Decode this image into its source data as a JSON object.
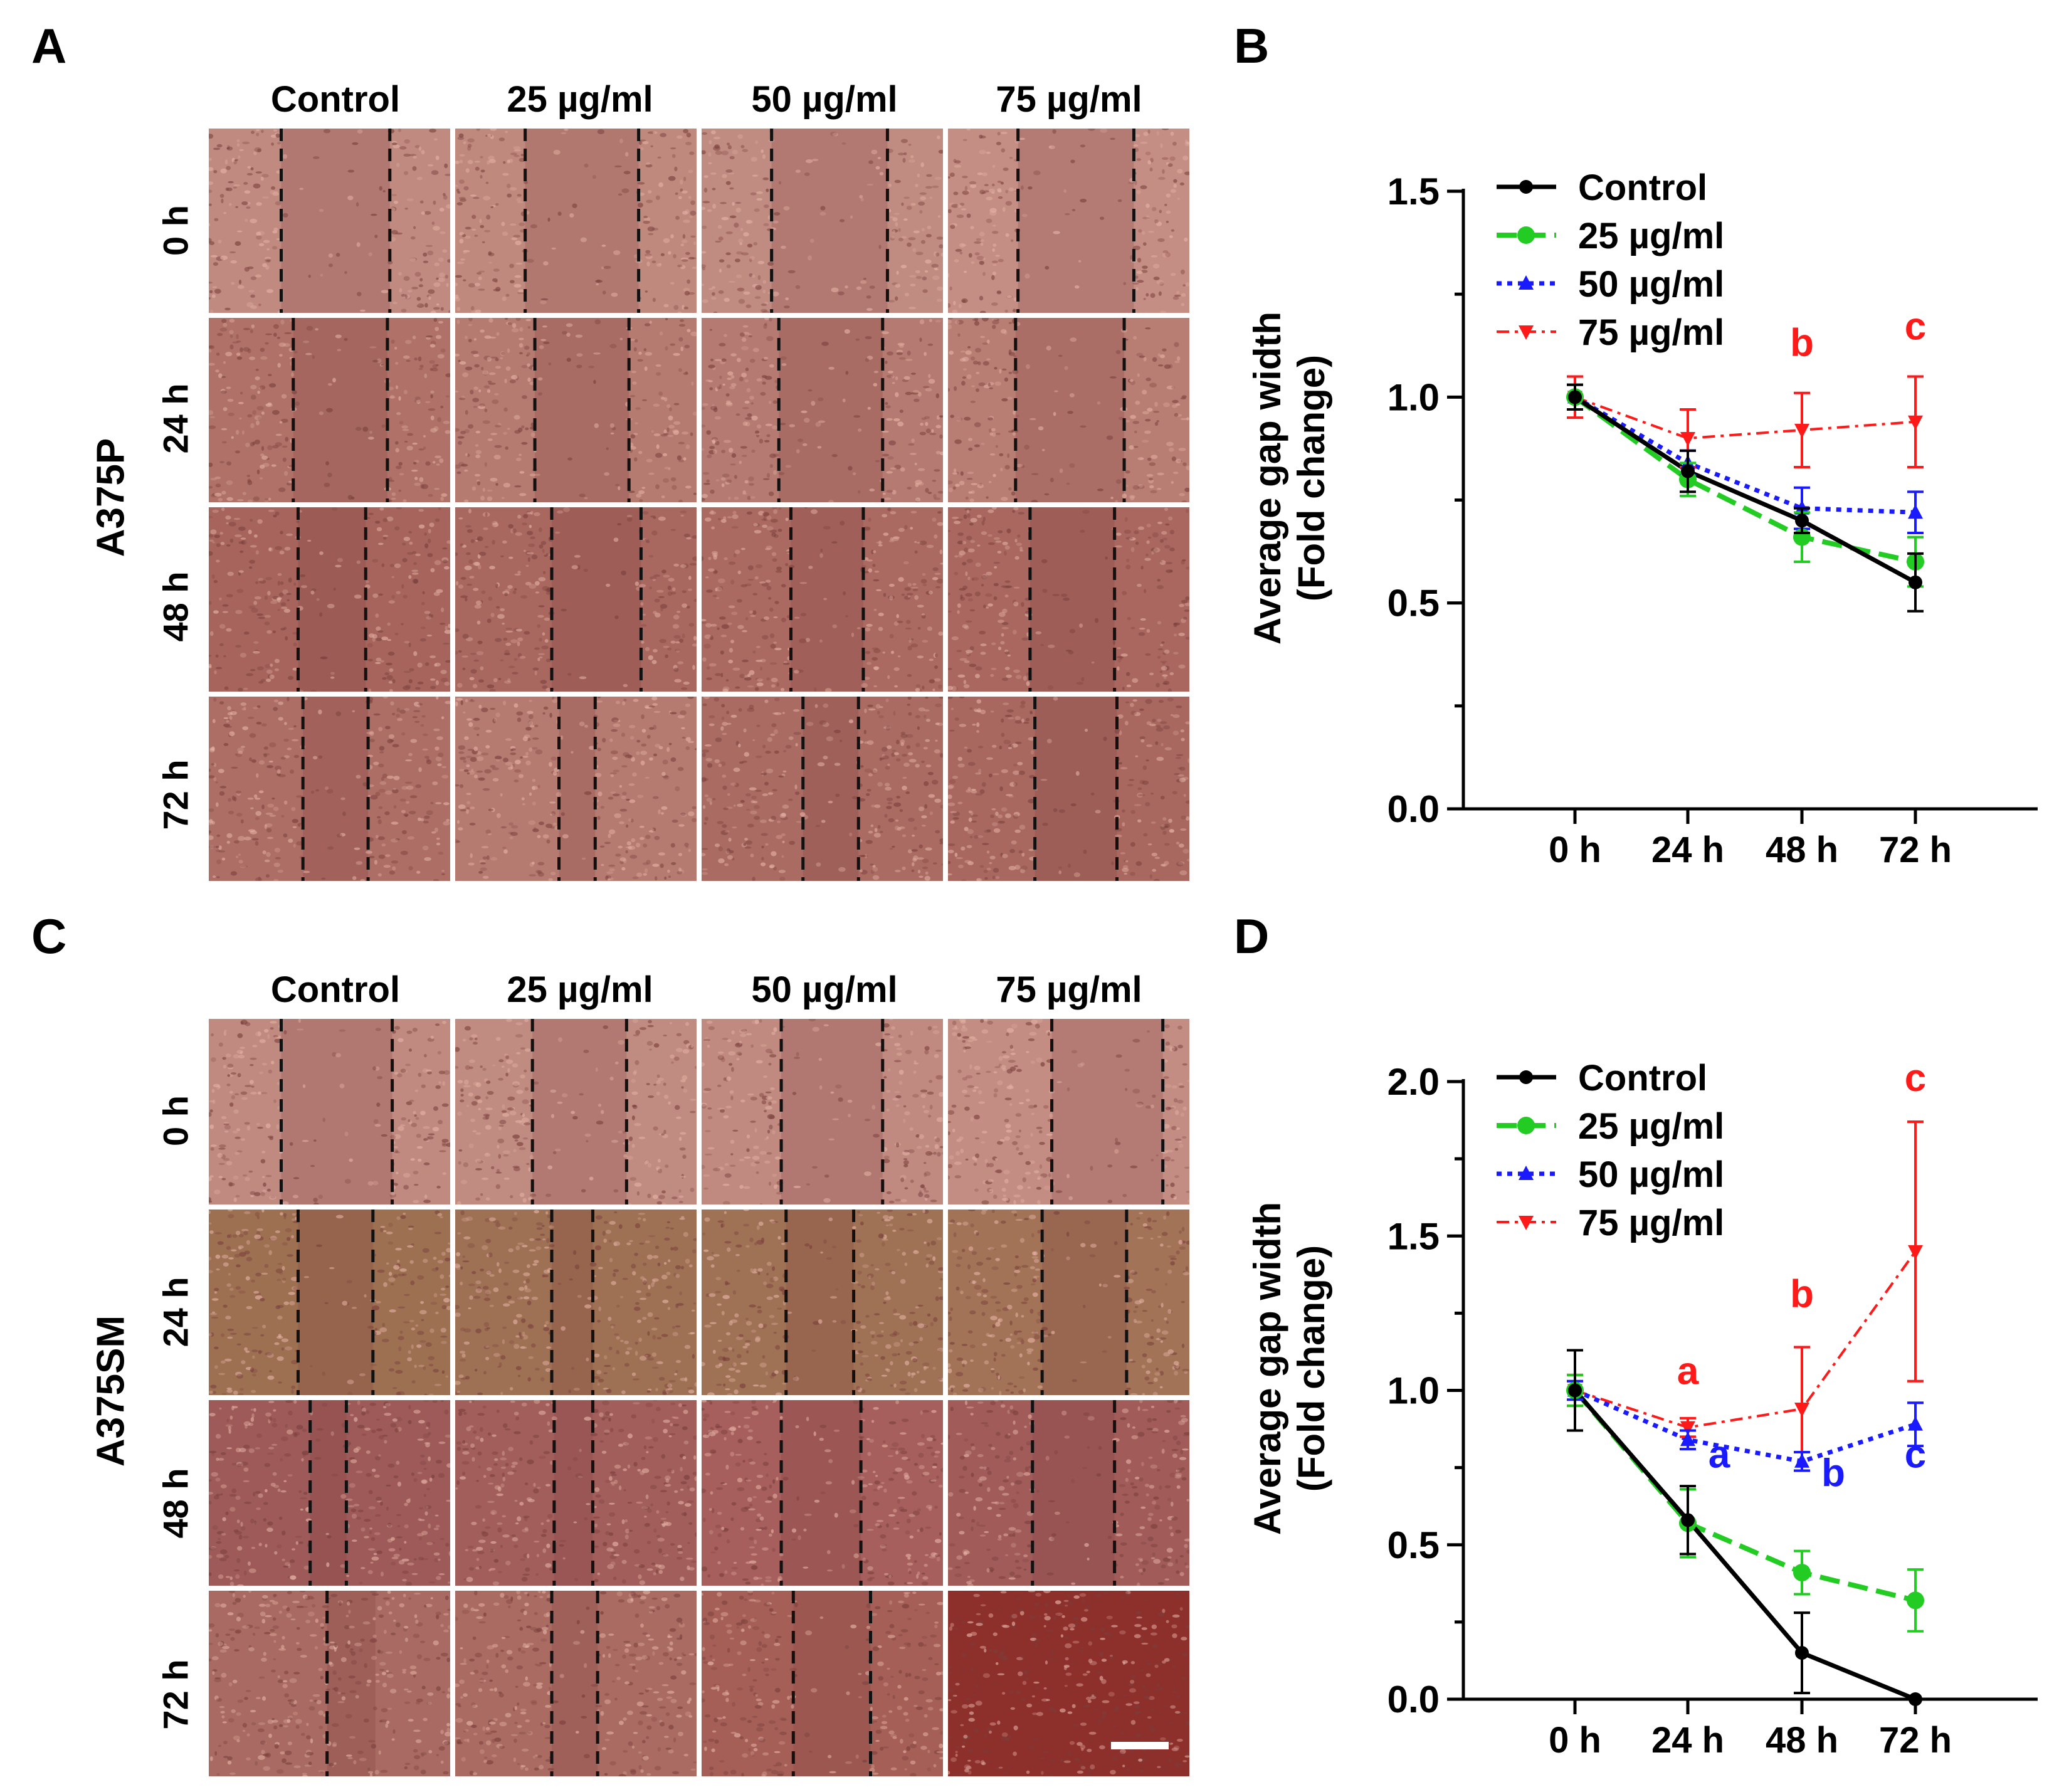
{
  "panels": {
    "A": {
      "letter": "A",
      "cell_line": "A375P",
      "columns": [
        "Control",
        "25 µg/ml",
        "50 µg/ml",
        "75 µg/ml"
      ],
      "rows": [
        "0 h",
        "24 h",
        "48 h",
        "72 h"
      ],
      "tint": "#b4766d"
    },
    "B": {
      "letter": "B"
    },
    "C": {
      "letter": "C",
      "cell_line": "A375SM",
      "columns": [
        "Control",
        "25 µg/ml",
        "50 µg/ml",
        "75 µg/ml"
      ],
      "rows": [
        "0 h",
        "24 h",
        "48 h",
        "72 h"
      ],
      "tint": "#ad7066"
    },
    "D": {
      "letter": "D"
    }
  },
  "colors": {
    "control": "#000000",
    "c25": "#22cc22",
    "c50": "#1a1aff",
    "c75": "#ff1a1a"
  },
  "chart_data": [
    {
      "panel": "B",
      "type": "line",
      "title": "",
      "ylabel": "Average gap width (Fold change)",
      "ylabel_lines": [
        "Average gap width",
        "(Fold change)"
      ],
      "xlabel": "",
      "categories": [
        "0 h",
        "24 h",
        "48 h",
        "72 h"
      ],
      "ylim": [
        0,
        1.5
      ],
      "yticks": [
        0.0,
        0.5,
        1.0,
        1.5
      ],
      "ytick_labels": [
        "0.0",
        "0.5",
        "1.0",
        "1.5"
      ],
      "legend_position": "top-left",
      "series": [
        {
          "name": "Control",
          "color": "#000000",
          "marker": "circle",
          "dash": "solid",
          "values": [
            1.0,
            0.82,
            0.7,
            0.55
          ],
          "errors": [
            0.03,
            0.05,
            0.03,
            0.07
          ]
        },
        {
          "name": "25 µg/ml",
          "color": "#22cc22",
          "marker": "circle",
          "dash": "dashed",
          "values": [
            1.0,
            0.8,
            0.66,
            0.6
          ],
          "errors": [
            0.03,
            0.04,
            0.06,
            0.06
          ]
        },
        {
          "name": "50 µg/ml",
          "color": "#1a1aff",
          "marker": "triangle-up",
          "dash": "dotted",
          "values": [
            1.0,
            0.84,
            0.73,
            0.72
          ],
          "errors": [
            0.03,
            0.03,
            0.05,
            0.05
          ]
        },
        {
          "name": "75 µg/ml",
          "color": "#ff1a1a",
          "marker": "triangle-down",
          "dash": "dashdot",
          "values": [
            1.0,
            0.9,
            0.92,
            0.94
          ],
          "errors": [
            0.05,
            0.07,
            0.09,
            0.11
          ]
        }
      ],
      "annotations": [
        {
          "text": "b",
          "x": "48 h",
          "y": 1.1,
          "color": "#ff1a1a"
        },
        {
          "text": "c",
          "x": "72 h",
          "y": 1.14,
          "color": "#ff1a1a"
        }
      ]
    },
    {
      "panel": "D",
      "type": "line",
      "title": "",
      "ylabel": "Average gap width (Fold change)",
      "ylabel_lines": [
        "Average gap width",
        "(Fold change)"
      ],
      "xlabel": "",
      "categories": [
        "0 h",
        "24 h",
        "48 h",
        "72 h"
      ],
      "ylim": [
        0,
        2.0
      ],
      "yticks": [
        0.0,
        0.5,
        1.0,
        1.5,
        2.0
      ],
      "ytick_labels": [
        "0.0",
        "0.5",
        "1.0",
        "1.5",
        "2.0"
      ],
      "legend_position": "top-left",
      "series": [
        {
          "name": "Control",
          "color": "#000000",
          "marker": "circle",
          "dash": "solid",
          "values": [
            1.0,
            0.58,
            0.15,
            0.0
          ],
          "errors": [
            0.13,
            0.11,
            0.13,
            0.0
          ]
        },
        {
          "name": "25 µg/ml",
          "color": "#22cc22",
          "marker": "circle",
          "dash": "dashed",
          "values": [
            1.0,
            0.57,
            0.41,
            0.32
          ],
          "errors": [
            0.05,
            0.11,
            0.07,
            0.1
          ]
        },
        {
          "name": "50 µg/ml",
          "color": "#1a1aff",
          "marker": "triangle-up",
          "dash": "dotted",
          "values": [
            1.0,
            0.84,
            0.77,
            0.89
          ],
          "errors": [
            0.03,
            0.03,
            0.03,
            0.07
          ]
        },
        {
          "name": "75 µg/ml",
          "color": "#ff1a1a",
          "marker": "triangle-down",
          "dash": "dashdot",
          "values": [
            1.0,
            0.88,
            0.94,
            1.45
          ],
          "errors": [
            0.05,
            0.03,
            0.2,
            0.42
          ]
        }
      ],
      "annotations": [
        {
          "text": "a",
          "x": "24 h",
          "y": 1.02,
          "color": "#ff1a1a"
        },
        {
          "text": "b",
          "x": "48 h",
          "y": 1.27,
          "color": "#ff1a1a"
        },
        {
          "text": "c",
          "x": "72 h",
          "y": 1.97,
          "color": "#ff1a1a"
        },
        {
          "text": "a",
          "x": "24 h",
          "y": 0.75,
          "color": "#1a1aff",
          "side": "right"
        },
        {
          "text": "b",
          "x": "48 h",
          "y": 0.69,
          "color": "#1a1aff",
          "side": "right"
        },
        {
          "text": "c",
          "x": "72 h",
          "y": 0.75,
          "color": "#1a1aff"
        }
      ]
    }
  ]
}
